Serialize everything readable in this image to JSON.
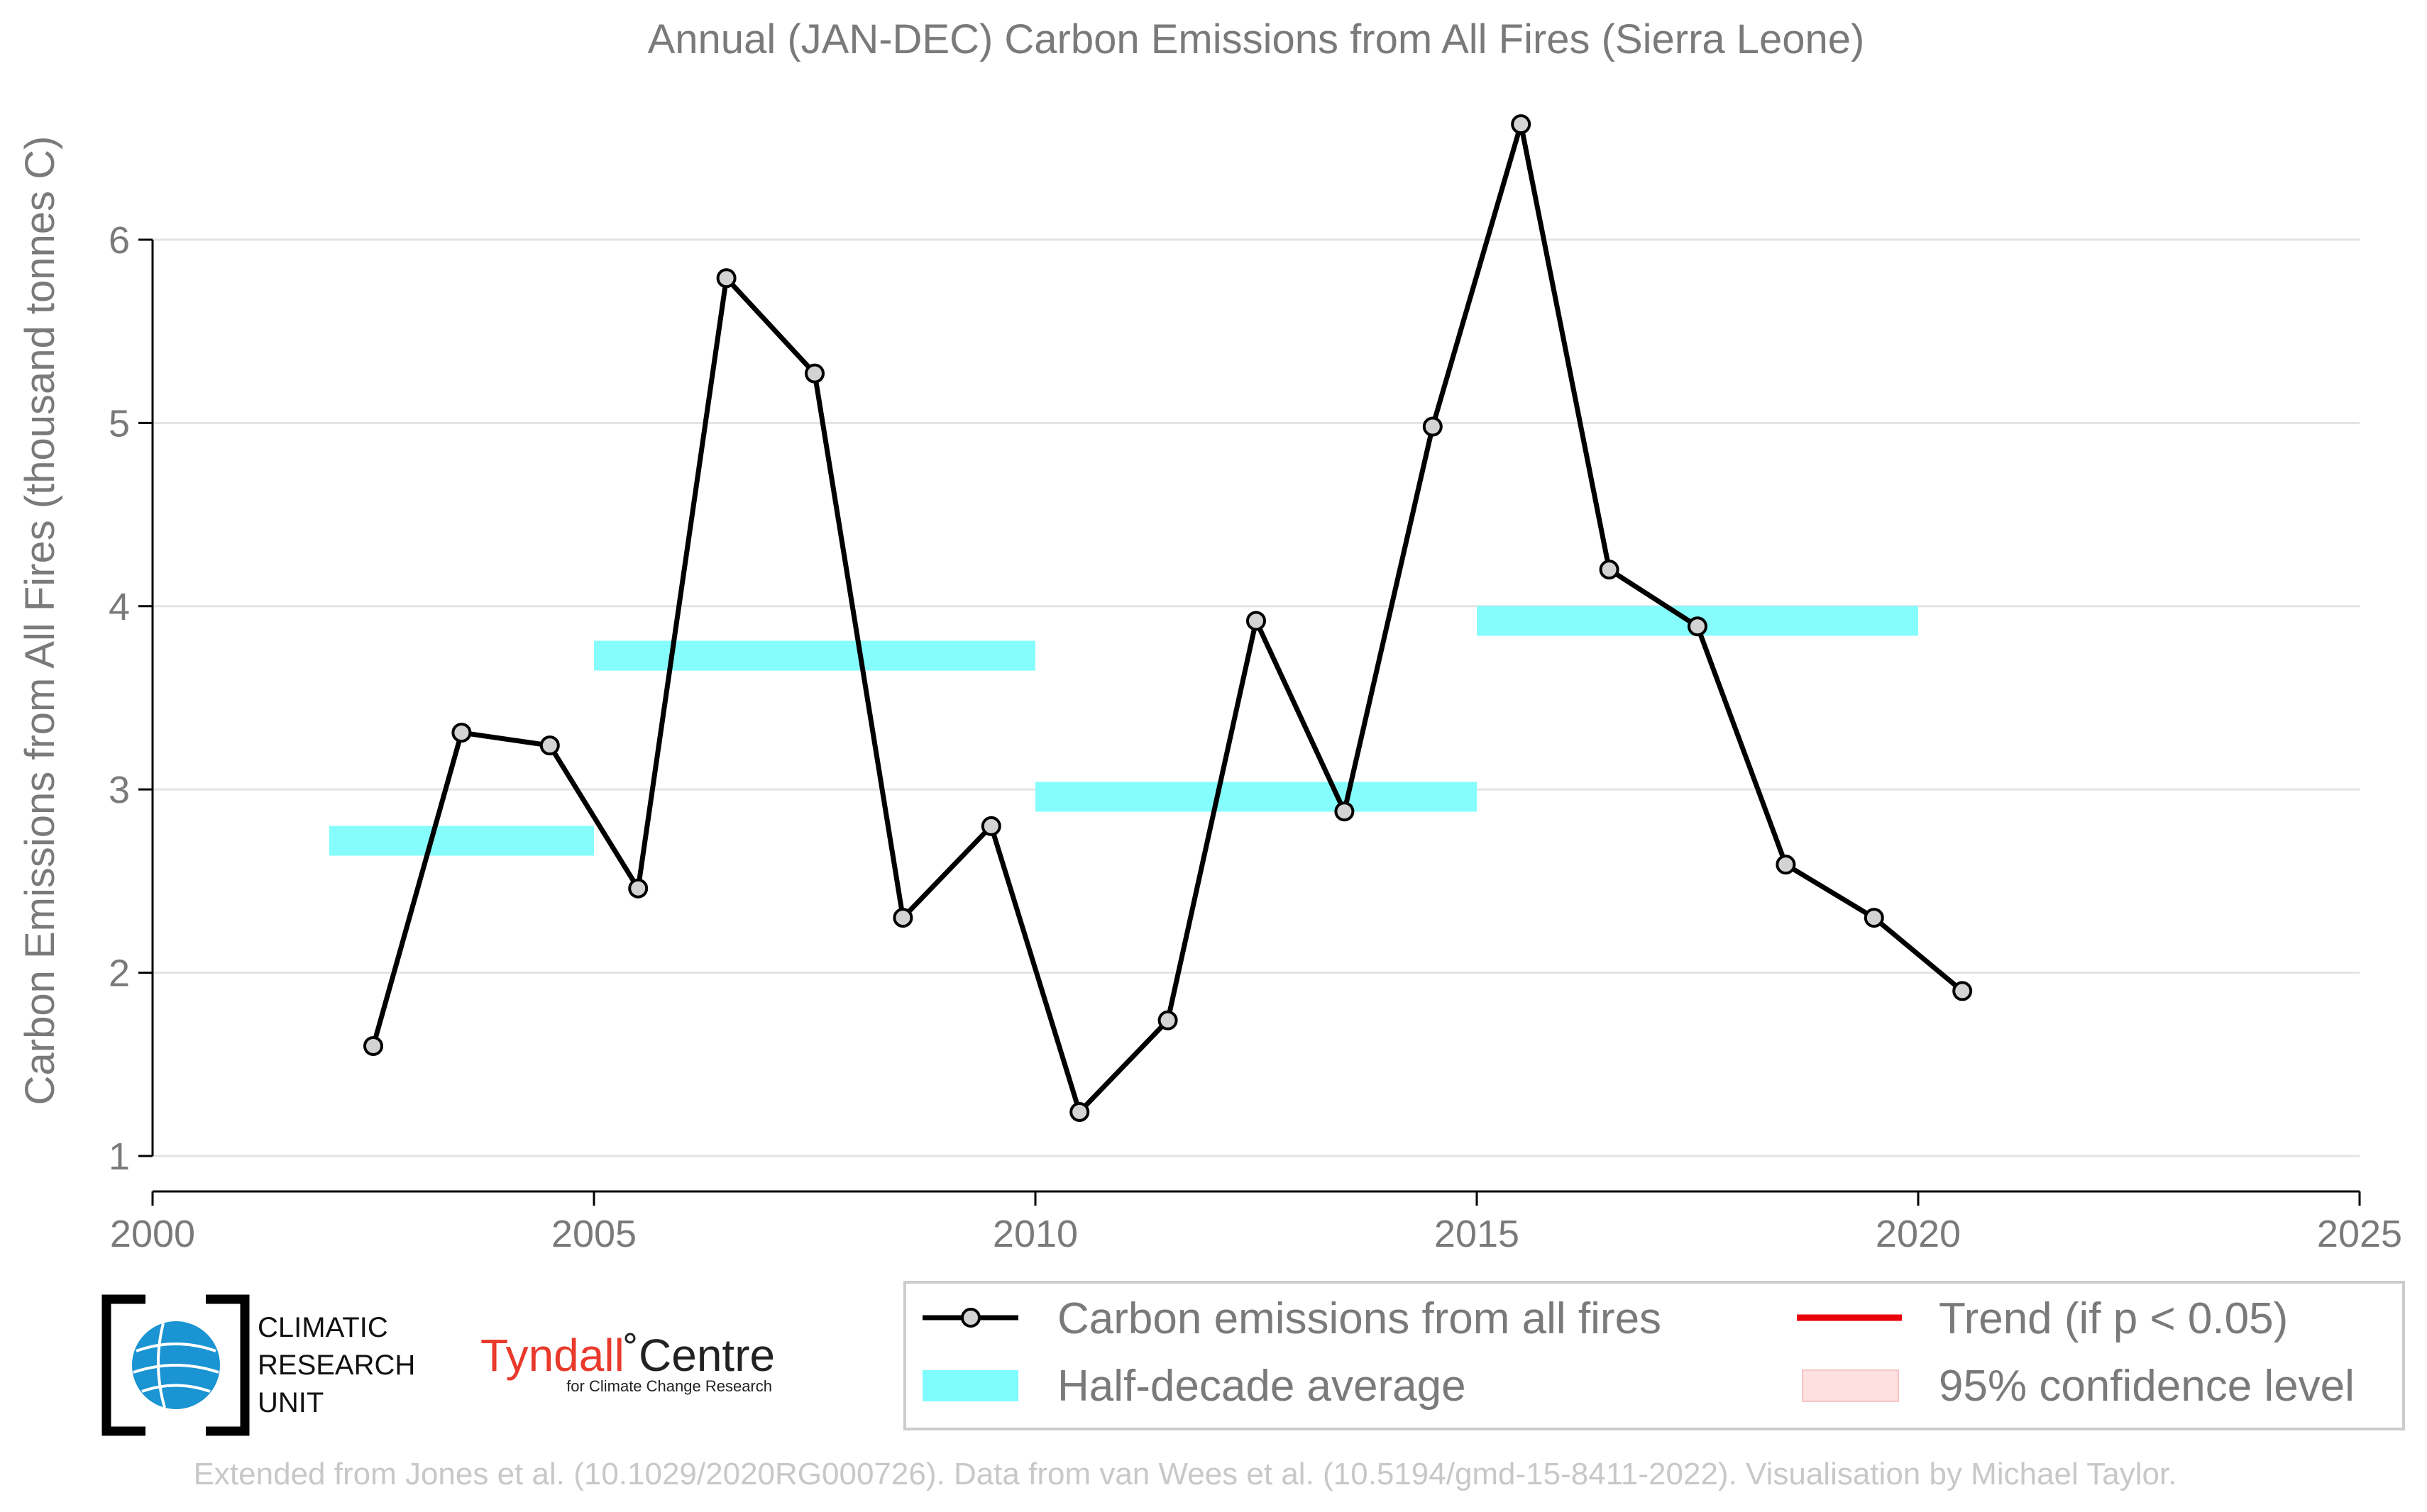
{
  "chart_data": {
    "type": "line",
    "title": "Annual (JAN-DEC) Carbon Emissions from All Fires (Sierra Leone)",
    "ylabel": "Carbon Emissions from All Fires (thousand tonnes C)",
    "xlabel": "",
    "xlim": [
      2000,
      2025
    ],
    "ylim": [
      1,
      6.65
    ],
    "xticks": [
      2000,
      2005,
      2010,
      2015,
      2020,
      2025
    ],
    "yticks": [
      1,
      2,
      3,
      4,
      5,
      6
    ],
    "grid": "horizontal",
    "series": [
      {
        "name": "Carbon emissions from all fires",
        "color": "#000000",
        "marker_fill": "#d3d3d3",
        "x": [
          2002.5,
          2003.5,
          2004.5,
          2005.5,
          2006.5,
          2007.5,
          2008.5,
          2009.5,
          2010.5,
          2011.5,
          2012.5,
          2013.5,
          2014.5,
          2015.5,
          2016.5,
          2017.5,
          2018.5,
          2019.5,
          2020.5
        ],
        "values": [
          1.6,
          3.31,
          3.24,
          2.46,
          5.79,
          5.27,
          2.3,
          2.8,
          1.24,
          1.74,
          3.92,
          2.88,
          4.98,
          6.63,
          4.2,
          3.89,
          2.59,
          2.3,
          1.9
        ]
      }
    ],
    "half_decade_average": {
      "name": "Half-decade average",
      "color": "#7ffdfd",
      "segments": [
        {
          "x0": 2002,
          "x1": 2005,
          "value": 2.72
        },
        {
          "x0": 2005,
          "x1": 2010,
          "value": 3.73
        },
        {
          "x0": 2010,
          "x1": 2015,
          "value": 2.96
        },
        {
          "x0": 2015,
          "x1": 2020,
          "value": 3.92
        }
      ]
    },
    "legend": {
      "placement": "bottom-right",
      "entries": [
        {
          "label": "Carbon emissions from all fires",
          "symbol": "line-marker",
          "color": "#000000"
        },
        {
          "label": "Trend (if p < 0.05)",
          "symbol": "line",
          "color": "#e8000b"
        },
        {
          "label": "Half-decade average",
          "symbol": "band",
          "color": "#7ffdfd"
        },
        {
          "label": "95% confidence level",
          "symbol": "band",
          "color": "#fde0e0"
        }
      ]
    }
  },
  "logos": {
    "cru_lines": [
      "CLIMATIC",
      "RESEARCH",
      "UNIT"
    ],
    "tyndall_name": "Tyndall",
    "tyndall_centre": "Centre",
    "tyndall_sub": "for Climate Change Research"
  },
  "footer": "Extended from Jones et al. (10.1029/2020RG000726). Data from van Wees et al. (10.5194/gmd-15-8411-2022). Visualisation by Michael Taylor."
}
